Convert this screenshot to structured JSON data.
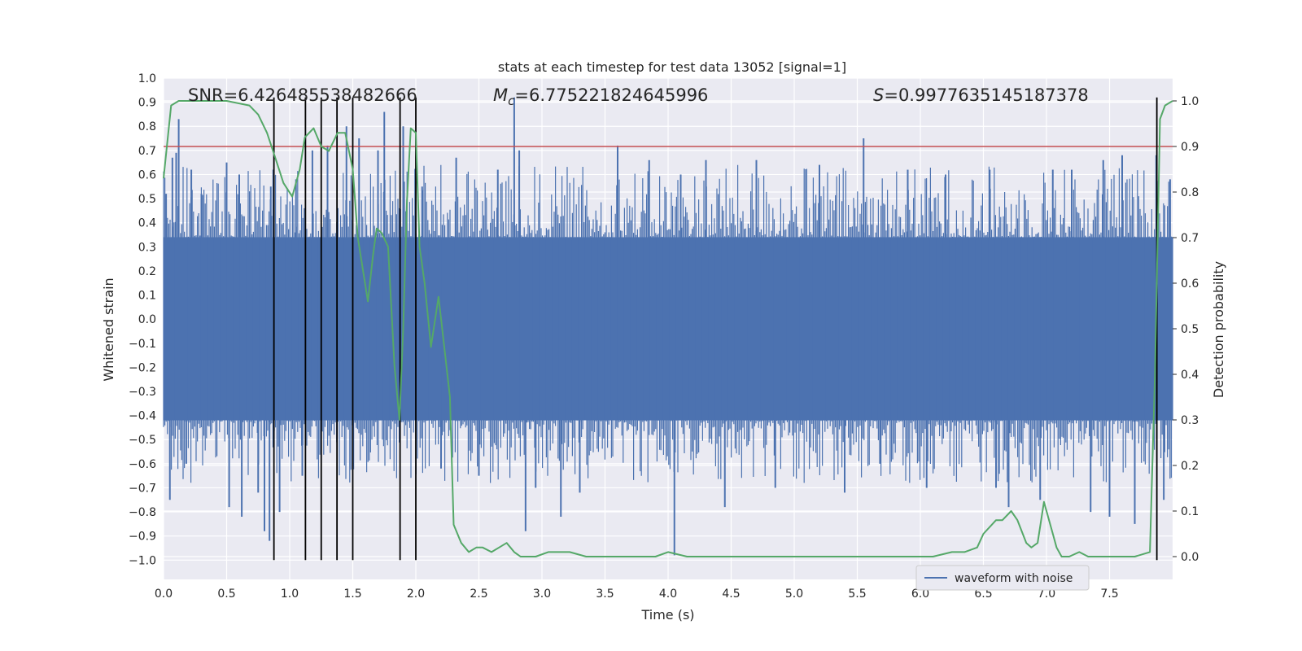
{
  "chart_data": {
    "type": "line",
    "title": "stats at each timestep for test data 13052 [signal=1]",
    "xlabel": "Time (s)",
    "ylabel": "Whitened strain",
    "y2label": "Detection probability",
    "xlim": [
      0.0,
      8.0
    ],
    "ylim": [
      -1.08,
      1.0
    ],
    "y2lim": [
      -0.05,
      1.05
    ],
    "xticks": [
      0.0,
      0.5,
      1.0,
      1.5,
      2.0,
      2.5,
      3.0,
      3.5,
      4.0,
      4.5,
      5.0,
      5.5,
      6.0,
      6.5,
      7.0,
      7.5
    ],
    "yticks": [
      1.0,
      0.9,
      0.8,
      0.7,
      0.6,
      0.5,
      0.4,
      0.3,
      0.2,
      0.1,
      0.0,
      -0.1,
      -0.2,
      -0.3,
      -0.4,
      -0.5,
      -0.6,
      -0.7,
      -0.8,
      -0.9,
      -1.0
    ],
    "y2ticks": [
      1.0,
      0.9,
      0.8,
      0.7,
      0.6,
      0.5,
      0.4,
      0.3,
      0.2,
      0.1,
      0.0
    ],
    "grid": true,
    "legend": {
      "placement": "lower-right",
      "entries": [
        "waveform with noise"
      ]
    },
    "annotations": {
      "snr": "SNR=6.426485538482666",
      "mc_symbol": "M",
      "mc_sub": "c",
      "mc_value": "=6.775221824645996",
      "s_symbol": "S",
      "s_value": "=0.9977635145187378"
    },
    "threshold": {
      "value": 0.9,
      "axis": "y2",
      "color": "#c44e52"
    },
    "vlines": [
      0.875,
      1.125,
      1.25,
      1.375,
      1.5,
      1.875,
      2.0,
      7.875
    ],
    "vline_range": [
      -1.0,
      0.92
    ],
    "series": [
      {
        "name": "waveform with noise",
        "axis": "y",
        "color": "#4c72b0",
        "kind": "noise",
        "envelope_pos": 0.34,
        "envelope_neg": -0.42,
        "spikes": [
          [
            0.02,
            0.52
          ],
          [
            0.05,
            -0.75
          ],
          [
            0.07,
            0.67
          ],
          [
            0.1,
            0.69
          ],
          [
            0.12,
            0.83
          ],
          [
            0.18,
            -0.6
          ],
          [
            0.22,
            0.62
          ],
          [
            0.3,
            0.52
          ],
          [
            0.5,
            0.65
          ],
          [
            0.52,
            -0.78
          ],
          [
            0.6,
            0.6
          ],
          [
            0.62,
            -0.82
          ],
          [
            0.75,
            -0.72
          ],
          [
            0.8,
            -0.88
          ],
          [
            0.84,
            -0.92
          ],
          [
            0.85,
            0.55
          ],
          [
            0.92,
            -0.8
          ],
          [
            1.05,
            0.58
          ],
          [
            1.1,
            -0.65
          ],
          [
            1.18,
            0.7
          ],
          [
            1.3,
            0.72
          ],
          [
            1.45,
            0.8
          ],
          [
            1.55,
            0.75
          ],
          [
            1.7,
            0.7
          ],
          [
            1.75,
            0.86
          ],
          [
            1.9,
            0.8
          ],
          [
            2.05,
            0.55
          ],
          [
            2.2,
            -0.62
          ],
          [
            2.32,
            0.67
          ],
          [
            2.5,
            -0.65
          ],
          [
            2.65,
            0.62
          ],
          [
            2.78,
            0.92
          ],
          [
            2.82,
            0.7
          ],
          [
            2.87,
            -0.88
          ],
          [
            2.95,
            -0.7
          ],
          [
            3.15,
            -0.82
          ],
          [
            3.3,
            -0.72
          ],
          [
            3.6,
            0.72
          ],
          [
            3.85,
            0.66
          ],
          [
            4.05,
            -0.98
          ],
          [
            4.1,
            0.6
          ],
          [
            4.3,
            0.66
          ],
          [
            4.45,
            -0.78
          ],
          [
            4.7,
            0.66
          ],
          [
            4.85,
            -0.7
          ],
          [
            5.2,
            0.64
          ],
          [
            5.4,
            -0.72
          ],
          [
            5.55,
            0.75
          ],
          [
            5.68,
            -0.6
          ],
          [
            5.9,
            0.62
          ],
          [
            6.05,
            -0.7
          ],
          [
            6.2,
            0.6
          ],
          [
            6.55,
            0.62
          ],
          [
            6.6,
            -0.7
          ],
          [
            6.7,
            -0.78
          ],
          [
            6.95,
            -0.75
          ],
          [
            7.05,
            0.62
          ],
          [
            7.2,
            0.62
          ],
          [
            7.35,
            -0.8
          ],
          [
            7.45,
            0.66
          ],
          [
            7.5,
            -0.82
          ],
          [
            7.6,
            0.68
          ],
          [
            7.7,
            -0.85
          ],
          [
            7.87,
            0.68
          ],
          [
            7.93,
            -0.75
          ],
          [
            7.98,
            0.58
          ]
        ]
      },
      {
        "name": "detection probability",
        "axis": "y2",
        "color": "#55a868",
        "x": [
          0.0,
          0.06,
          0.12,
          0.25,
          0.5,
          0.68,
          0.75,
          0.82,
          0.88,
          0.95,
          1.02,
          1.08,
          1.12,
          1.19,
          1.25,
          1.31,
          1.38,
          1.44,
          1.5,
          1.54,
          1.58,
          1.62,
          1.66,
          1.69,
          1.73,
          1.78,
          1.83,
          1.87,
          1.9,
          1.93,
          1.96,
          2.0,
          2.03,
          2.07,
          2.12,
          2.18,
          2.23,
          2.27,
          2.3,
          2.36,
          2.42,
          2.48,
          2.53,
          2.6,
          2.66,
          2.72,
          2.78,
          2.83,
          2.88,
          2.95,
          3.05,
          3.15,
          3.22,
          3.35,
          3.5,
          3.7,
          3.9,
          4.0,
          4.15,
          4.5,
          4.8,
          5.0,
          5.3,
          5.6,
          5.9,
          6.1,
          6.25,
          6.35,
          6.45,
          6.5,
          6.6,
          6.65,
          6.72,
          6.77,
          6.84,
          6.88,
          6.93,
          6.98,
          7.05,
          7.08,
          7.12,
          7.18,
          7.26,
          7.33,
          7.5,
          7.6,
          7.7,
          7.82,
          7.86,
          7.9,
          7.94,
          8.0
        ],
        "y": [
          0.83,
          0.99,
          1.0,
          1.0,
          1.0,
          0.99,
          0.97,
          0.93,
          0.88,
          0.82,
          0.79,
          0.85,
          0.92,
          0.94,
          0.9,
          0.89,
          0.93,
          0.93,
          0.85,
          0.7,
          0.63,
          0.56,
          0.66,
          0.72,
          0.71,
          0.68,
          0.42,
          0.3,
          0.5,
          0.78,
          0.94,
          0.93,
          0.68,
          0.6,
          0.46,
          0.57,
          0.45,
          0.35,
          0.07,
          0.03,
          0.01,
          0.02,
          0.02,
          0.01,
          0.02,
          0.03,
          0.01,
          0.0,
          0.0,
          0.0,
          0.01,
          0.01,
          0.01,
          0.0,
          0.0,
          0.0,
          0.0,
          0.01,
          0.0,
          0.0,
          0.0,
          0.0,
          0.0,
          0.0,
          0.0,
          0.0,
          0.01,
          0.01,
          0.02,
          0.05,
          0.08,
          0.08,
          0.1,
          0.08,
          0.03,
          0.02,
          0.03,
          0.12,
          0.05,
          0.02,
          0.0,
          0.0,
          0.01,
          0.0,
          0.0,
          0.0,
          0.0,
          0.01,
          0.4,
          0.96,
          0.99,
          1.0
        ]
      }
    ]
  }
}
